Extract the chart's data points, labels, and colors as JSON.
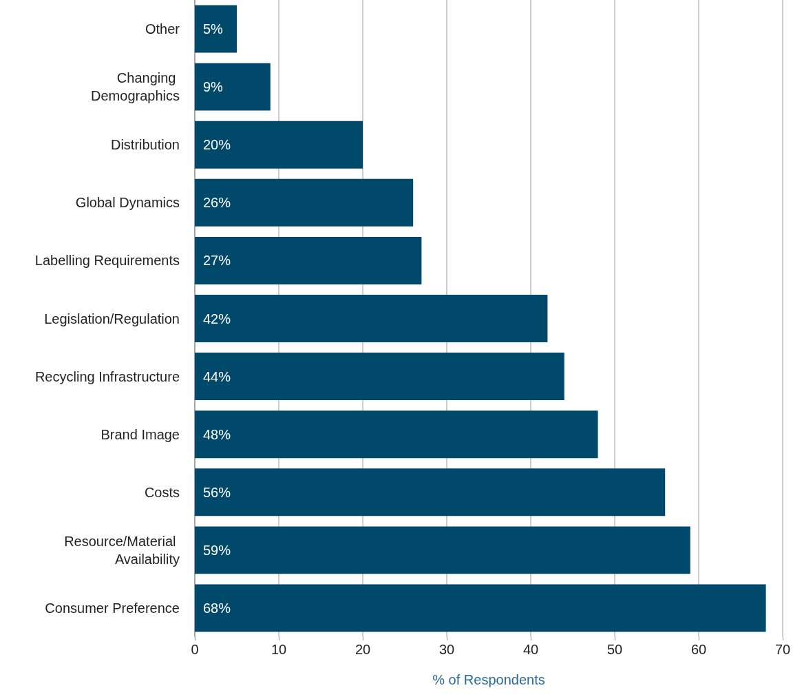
{
  "chart_data": {
    "type": "bar",
    "orientation": "horizontal",
    "xlabel": "% of Respondents",
    "categories": [
      "Other",
      "Changing Demographics",
      "Distribution",
      "Global Dynamics",
      "Labelling Requirements",
      "Legislation/Regulation",
      "Recycling Infrastructure",
      "Brand Image",
      "Costs",
      "Resource/Material Availability",
      "Consumer Preference"
    ],
    "values": [
      5,
      9,
      20,
      26,
      27,
      42,
      44,
      48,
      56,
      59,
      68
    ],
    "value_labels": [
      "5%",
      "9%",
      "20%",
      "26%",
      "27%",
      "42%",
      "44%",
      "48%",
      "56%",
      "59%",
      "68%"
    ],
    "color": "#00496b",
    "xlim": [
      0,
      70
    ],
    "xticks": [
      0,
      10,
      20,
      30,
      40,
      50,
      60,
      70
    ],
    "grid": "x"
  }
}
